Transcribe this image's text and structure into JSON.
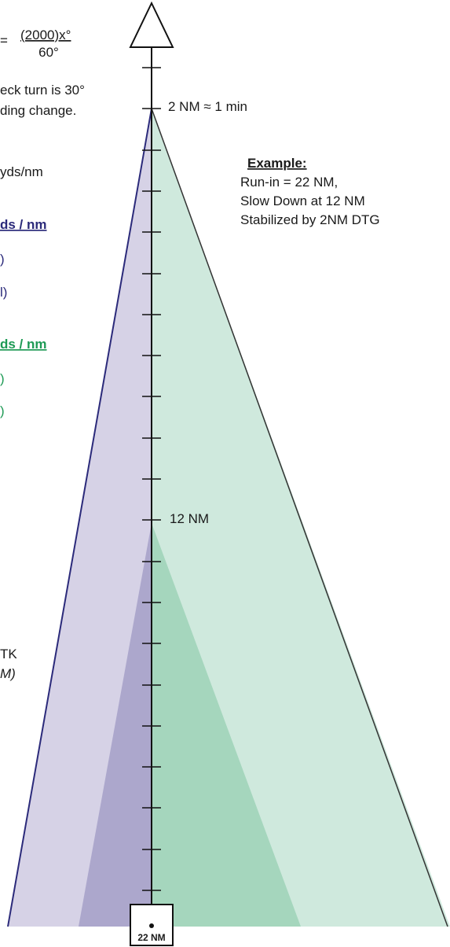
{
  "formula": {
    "left": "=",
    "numerator": "(2000)x°",
    "denominator": "60°"
  },
  "check_turn": {
    "line1": "eck turn is 30°",
    "line2": "ding change."
  },
  "yds_per_nm": "yds/nm",
  "navy_header": "ds / nm",
  "navy_lines": [
    ")",
    "l)"
  ],
  "green_header": "ds / nm",
  "green_lines": [
    ")",
    ")"
  ],
  "lower_left": {
    "line1": "TK",
    "line2": "M)"
  },
  "scale_labels": {
    "top": "2 NM ≈ 1 min",
    "middle": "12 NM",
    "bottom": "22 NM"
  },
  "example": {
    "heading": "Example:",
    "lines": [
      "Run-in = 22 NM,",
      "Slow Down at 12 NM",
      "Stabilized by 2NM DTG"
    ]
  },
  "colors": {
    "navy_light": "#d6d2e6",
    "navy_dark": "#aca7cc",
    "green_light": "#cfe9dd",
    "green_dark": "#a5d6bd",
    "navy_text": "#2b2a7a",
    "green_text": "#1e9a55"
  }
}
